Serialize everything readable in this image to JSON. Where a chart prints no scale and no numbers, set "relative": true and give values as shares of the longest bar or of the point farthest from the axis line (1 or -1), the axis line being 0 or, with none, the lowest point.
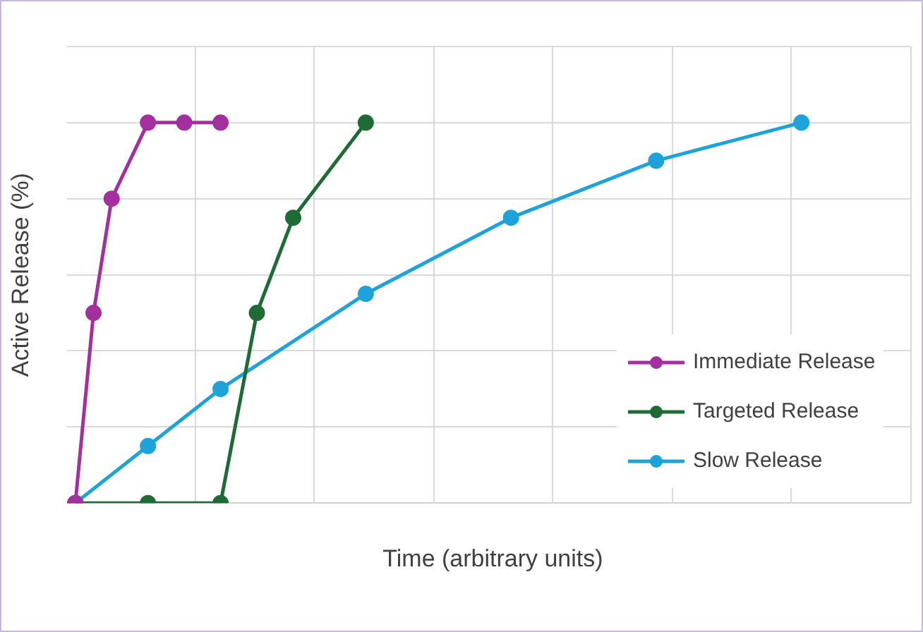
{
  "chart_data": {
    "type": "line",
    "xlabel": "Time (arbitrary units)",
    "ylabel": "Active Release (%)",
    "relative": true,
    "grid": true,
    "legend": "bottom right",
    "marker": "circle",
    "line_style": "solid",
    "categories": [
      null,
      null,
      null,
      null,
      null,
      null,
      null,
      null,
      null,
      null,
      null,
      null,
      null,
      null,
      null,
      null,
      null,
      null,
      null,
      null,
      null,
      null,
      null,
      null,
      null,
      null,
      null,
      null,
      null,
      null,
      null,
      null,
      null,
      null,
      null,
      null,
      null,
      null,
      null,
      null,
      null,
      null,
      null,
      null,
      null,
      null,
      null
    ],
    "series": [
      {
        "name": "Immediate Release",
        "color": "#a3309e",
        "values": [
          0,
          0.5,
          0.8,
          null,
          1,
          null,
          1,
          null,
          1,
          null,
          null,
          null,
          null,
          null,
          null,
          null,
          null,
          null,
          null,
          null,
          null,
          null,
          null,
          null,
          null,
          null,
          null,
          null,
          null,
          null,
          null,
          null,
          null,
          null,
          null,
          null,
          null,
          null,
          null,
          null,
          null,
          null,
          null,
          null,
          null,
          null,
          null
        ]
      },
      {
        "name": "Targeted Release",
        "color": "#1f6b36",
        "values": [
          0,
          null,
          null,
          null,
          0,
          null,
          null,
          null,
          0,
          null,
          0.5,
          null,
          0.75,
          null,
          null,
          null,
          1,
          null,
          null,
          null,
          null,
          null,
          null,
          null,
          null,
          null,
          null,
          null,
          null,
          null,
          null,
          null,
          null,
          null,
          null,
          null,
          null,
          null,
          null,
          null,
          null,
          null,
          null,
          null,
          null,
          null,
          null
        ]
      },
      {
        "name": "Slow Release",
        "color": "#1ea2da",
        "values": [
          0,
          null,
          null,
          null,
          0.15,
          null,
          null,
          null,
          0.3,
          null,
          null,
          null,
          null,
          null,
          null,
          null,
          0.55,
          null,
          null,
          null,
          null,
          null,
          null,
          null,
          0.75,
          null,
          null,
          null,
          null,
          null,
          null,
          null,
          0.9,
          null,
          null,
          null,
          null,
          null,
          null,
          null,
          1,
          null,
          null,
          null,
          null,
          null,
          null
        ]
      }
    ]
  }
}
